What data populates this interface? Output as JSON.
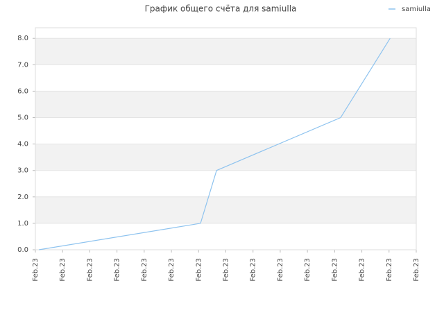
{
  "chart_data": {
    "type": "line",
    "title": "График общего счёта для samiulla",
    "x": [
      0.13,
      6.07,
      6.66,
      11.22,
      13.04
    ],
    "series": [
      {
        "name": "samiulla",
        "color": "#8ec3ef",
        "values": [
          0,
          1,
          3,
          5,
          8
        ]
      }
    ],
    "xlim": [
      0,
      14
    ],
    "xticks": [
      {
        "value": 0,
        "label": "Feb.23"
      },
      {
        "value": 1,
        "label": "Feb.23"
      },
      {
        "value": 2,
        "label": "Feb.23"
      },
      {
        "value": 3,
        "label": "Feb.23"
      },
      {
        "value": 4,
        "label": "Feb.23"
      },
      {
        "value": 5,
        "label": "Feb.23"
      },
      {
        "value": 6,
        "label": "Feb.23"
      },
      {
        "value": 7,
        "label": "Feb.23"
      },
      {
        "value": 8,
        "label": "Feb.23"
      },
      {
        "value": 9,
        "label": "Feb.23"
      },
      {
        "value": 10,
        "label": "Feb.23"
      },
      {
        "value": 11,
        "label": "Feb.23"
      },
      {
        "value": 12,
        "label": "Feb.23"
      },
      {
        "value": 13,
        "label": "Feb.23"
      },
      {
        "value": 14,
        "label": "Feb.23"
      }
    ],
    "ylim": [
      0,
      8.4
    ],
    "yticks": [
      {
        "value": 0,
        "label": "0.0"
      },
      {
        "value": 1,
        "label": "1.0"
      },
      {
        "value": 2,
        "label": "2.0"
      },
      {
        "value": 3,
        "label": "3.0"
      },
      {
        "value": 4,
        "label": "4.0"
      },
      {
        "value": 5,
        "label": "5.0"
      },
      {
        "value": 6,
        "label": "6.0"
      },
      {
        "value": 7,
        "label": "7.0"
      },
      {
        "value": 8,
        "label": "8.0"
      }
    ],
    "grid": true,
    "legend": "top-right"
  }
}
